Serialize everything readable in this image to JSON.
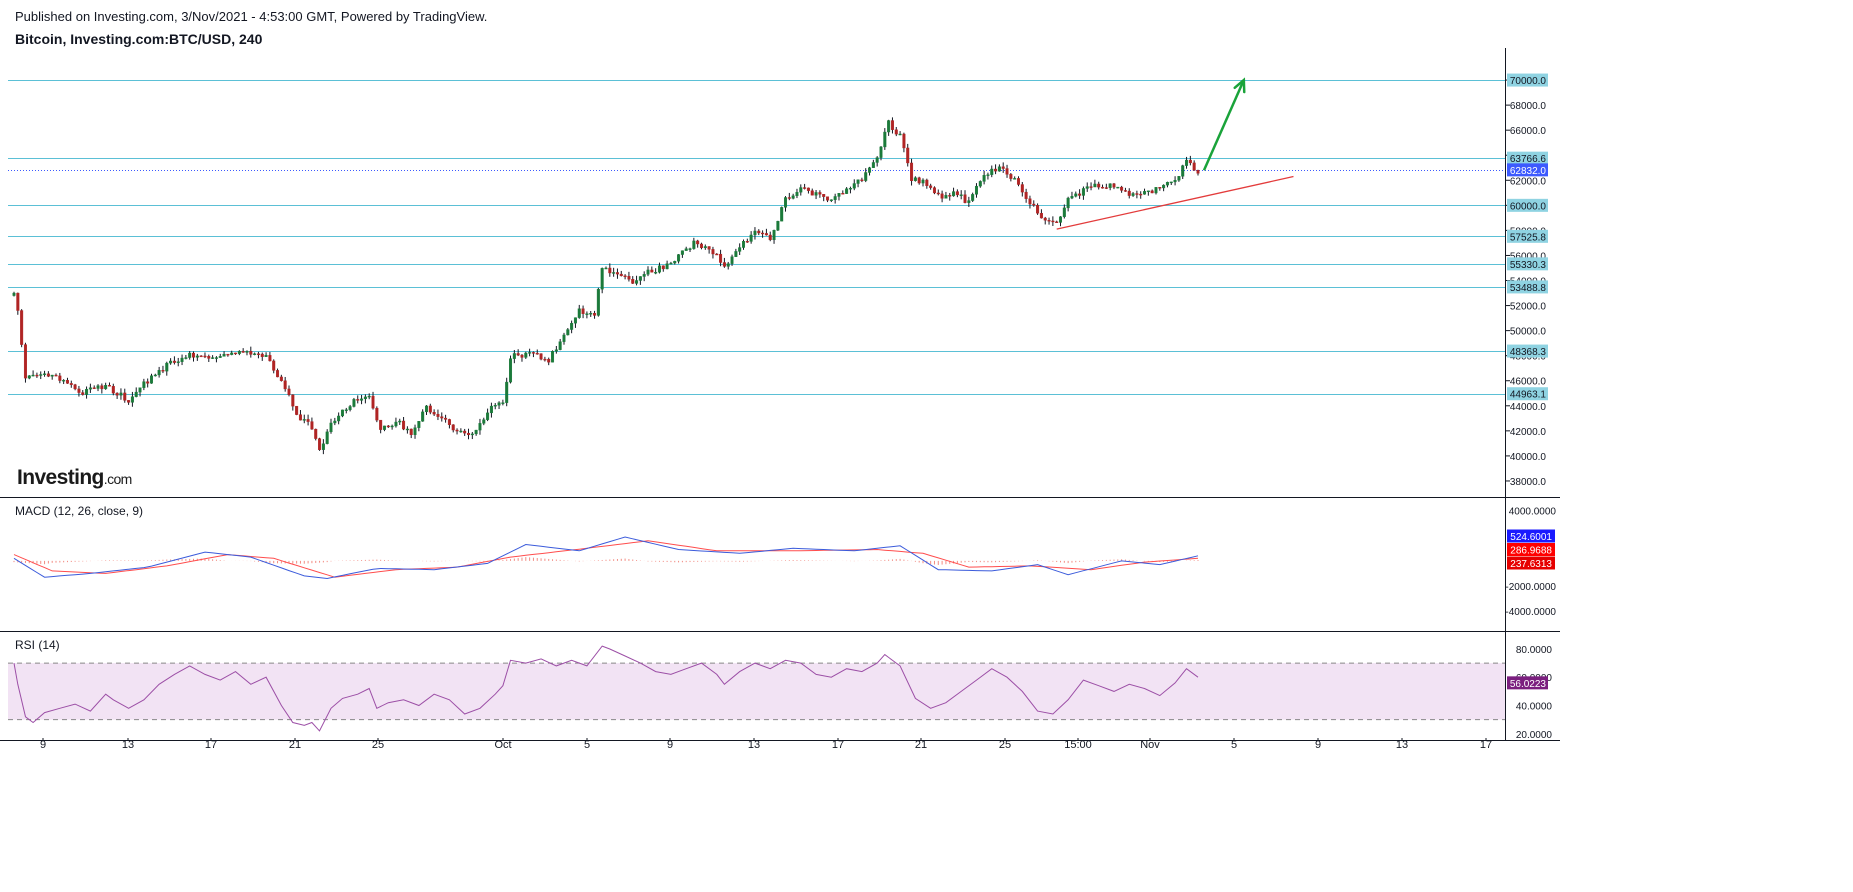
{
  "header": {
    "published": "Published on Investing.com, 3/Nov/2021 - 4:53:00 GMT, Powered by TradingView.",
    "symbol": "Bitcoin, Investing.com:BTC/USD, 240"
  },
  "watermark": {
    "brand": "Investing",
    "suffix": ".com"
  },
  "colors": {
    "up": "#26a69a",
    "up_body": "#1b7a3a",
    "down": "#b02424",
    "level_line": "#5bc0d6",
    "level_label_bg": "#8fd3e2",
    "current_price_line": "#3d5afe",
    "trendline": "#e33b3b",
    "arrow": "#1aa33a",
    "macd_line": "#3b5bdb",
    "signal_line": "#ff4d4d",
    "macd_hist": "#f28b82",
    "rsi_line": "#9c4fa6",
    "rsi_band": "#f2e3f4"
  },
  "panes": {
    "macd": {
      "label": "MACD (12, 26, close, 9)"
    },
    "rsi": {
      "label": "RSI (14)"
    }
  },
  "chart_data": [
    {
      "type": "candlestick",
      "title": "Bitcoin, Investing.com:BTC/USD, 240",
      "x_labels": [
        "9",
        "13",
        "17",
        "21",
        "25",
        "Oct",
        "5",
        "9",
        "13",
        "17",
        "21",
        "25",
        "15:00",
        "Nov",
        "5",
        "9",
        "13",
        "17"
      ],
      "ylim": [
        36800,
        72000
      ],
      "y_ticks": [
        38000,
        40000,
        42000,
        44000,
        46000,
        48000,
        50000,
        52000,
        54000,
        56000,
        58000,
        60000,
        62000,
        64000,
        66000,
        68000,
        70000
      ],
      "price_path": [
        [
          0,
          52800
        ],
        [
          1,
          51500
        ],
        [
          3,
          46200
        ],
        [
          8,
          46400
        ],
        [
          12,
          46100
        ],
        [
          18,
          45000
        ],
        [
          24,
          45600
        ],
        [
          30,
          44500
        ],
        [
          36,
          46300
        ],
        [
          42,
          47600
        ],
        [
          48,
          48200
        ],
        [
          54,
          47800
        ],
        [
          60,
          48500
        ],
        [
          66,
          47800
        ],
        [
          70,
          46100
        ],
        [
          74,
          43200
        ],
        [
          78,
          42300
        ],
        [
          80,
          40600
        ],
        [
          84,
          43000
        ],
        [
          90,
          44600
        ],
        [
          93,
          44900
        ],
        [
          96,
          42100
        ],
        [
          100,
          42800
        ],
        [
          104,
          41900
        ],
        [
          108,
          43800
        ],
        [
          112,
          43200
        ],
        [
          116,
          42000
        ],
        [
          120,
          41700
        ],
        [
          124,
          43600
        ],
        [
          128,
          44200
        ],
        [
          130,
          48000
        ],
        [
          136,
          48100
        ],
        [
          140,
          47700
        ],
        [
          144,
          49500
        ],
        [
          148,
          51600
        ],
        [
          152,
          51200
        ],
        [
          154,
          55200
        ],
        [
          158,
          54400
        ],
        [
          162,
          54000
        ],
        [
          166,
          54700
        ],
        [
          170,
          55100
        ],
        [
          174,
          55900
        ],
        [
          178,
          57000
        ],
        [
          182,
          56700
        ],
        [
          186,
          55200
        ],
        [
          190,
          56600
        ],
        [
          194,
          58000
        ],
        [
          198,
          57200
        ],
        [
          202,
          60500
        ],
        [
          206,
          61300
        ],
        [
          210,
          60800
        ],
        [
          214,
          60500
        ],
        [
          218,
          61400
        ],
        [
          222,
          62000
        ],
        [
          226,
          63900
        ],
        [
          229,
          66600
        ],
        [
          232,
          65500
        ],
        [
          235,
          62200
        ],
        [
          239,
          61700
        ],
        [
          242,
          60700
        ],
        [
          246,
          60900
        ],
        [
          250,
          60300
        ],
        [
          254,
          62300
        ],
        [
          258,
          63100
        ],
        [
          262,
          62100
        ],
        [
          266,
          60300
        ],
        [
          270,
          58600
        ],
        [
          273,
          58700
        ],
        [
          276,
          60500
        ],
        [
          280,
          61200
        ],
        [
          284,
          61700
        ],
        [
          288,
          61500
        ],
        [
          292,
          60900
        ],
        [
          296,
          61100
        ],
        [
          300,
          61300
        ],
        [
          304,
          62000
        ],
        [
          307,
          63500
        ],
        [
          310,
          62800
        ]
      ],
      "levels": [
        70000.0,
        63766.6,
        60000.0,
        57525.8,
        55330.3,
        53488.8,
        48368.3,
        44963.1
      ],
      "level_labels": [
        "70000.0",
        "63766.6",
        "60000.0",
        "57525.8",
        "55330.3",
        "53488.8",
        "48368.3",
        "44963.1"
      ],
      "current_price": 62832.0,
      "current_price_label": "62832.0",
      "trendline": {
        "from": [
          273,
          58100
        ],
        "to": [
          335,
          62300
        ]
      },
      "projection_arrow": {
        "from": [
          310,
          62800
        ],
        "to": [
          322,
          70000
        ]
      }
    },
    {
      "type": "line",
      "name": "MACD (12, 26, close, 9)",
      "ylim": [
        -5500,
        5000
      ],
      "y_ticks": [
        -4000,
        -2000,
        4000
      ],
      "y_tick_labels": [
        "-4000.0000",
        "-2000.0000",
        "4000.0000"
      ],
      "macd_path": [
        [
          0,
          200
        ],
        [
          8,
          -1300
        ],
        [
          20,
          -1000
        ],
        [
          35,
          -500
        ],
        [
          50,
          700
        ],
        [
          62,
          300
        ],
        [
          76,
          -1200
        ],
        [
          82,
          -1400
        ],
        [
          95,
          -600
        ],
        [
          110,
          -700
        ],
        [
          124,
          -200
        ],
        [
          134,
          1300
        ],
        [
          148,
          800
        ],
        [
          160,
          1900
        ],
        [
          174,
          900
        ],
        [
          190,
          600
        ],
        [
          204,
          1000
        ],
        [
          220,
          800
        ],
        [
          232,
          1200
        ],
        [
          242,
          -700
        ],
        [
          256,
          -800
        ],
        [
          268,
          -300
        ],
        [
          276,
          -1100
        ],
        [
          290,
          0
        ],
        [
          300,
          -300
        ],
        [
          310,
          400
        ]
      ],
      "signal_path": [
        [
          0,
          500
        ],
        [
          10,
          -800
        ],
        [
          24,
          -1000
        ],
        [
          40,
          -400
        ],
        [
          56,
          500
        ],
        [
          68,
          200
        ],
        [
          84,
          -1300
        ],
        [
          100,
          -700
        ],
        [
          116,
          -500
        ],
        [
          130,
          300
        ],
        [
          150,
          1000
        ],
        [
          166,
          1600
        ],
        [
          184,
          800
        ],
        [
          204,
          800
        ],
        [
          226,
          900
        ],
        [
          238,
          600
        ],
        [
          250,
          -500
        ],
        [
          266,
          -400
        ],
        [
          282,
          -700
        ],
        [
          296,
          -100
        ],
        [
          310,
          200
        ]
      ],
      "values": {
        "macd": 524.6001,
        "signal": 286.9688,
        "histogram": 237.6313
      },
      "value_labels": [
        "524.6001",
        "286.9688",
        "237.6313"
      ]
    },
    {
      "type": "line",
      "name": "RSI (14)",
      "ylim": [
        17,
        92
      ],
      "y_ticks": [
        20,
        40,
        60,
        80
      ],
      "y_tick_labels": [
        "20.0000",
        "40.0000",
        "60.0000",
        "80.0000"
      ],
      "band": [
        30,
        70
      ],
      "rsi_path": [
        [
          0,
          70
        ],
        [
          1,
          55
        ],
        [
          3,
          32
        ],
        [
          5,
          28
        ],
        [
          8,
          35
        ],
        [
          12,
          38
        ],
        [
          16,
          41
        ],
        [
          20,
          36
        ],
        [
          24,
          48
        ],
        [
          26,
          44
        ],
        [
          30,
          38
        ],
        [
          34,
          44
        ],
        [
          38,
          55
        ],
        [
          42,
          62
        ],
        [
          46,
          68
        ],
        [
          50,
          62
        ],
        [
          54,
          58
        ],
        [
          58,
          64
        ],
        [
          62,
          55
        ],
        [
          66,
          60
        ],
        [
          70,
          40
        ],
        [
          73,
          28
        ],
        [
          76,
          26
        ],
        [
          78,
          28
        ],
        [
          80,
          22
        ],
        [
          83,
          38
        ],
        [
          86,
          45
        ],
        [
          90,
          48
        ],
        [
          93,
          52
        ],
        [
          95,
          38
        ],
        [
          98,
          42
        ],
        [
          102,
          44
        ],
        [
          106,
          40
        ],
        [
          110,
          48
        ],
        [
          114,
          44
        ],
        [
          118,
          34
        ],
        [
          122,
          38
        ],
        [
          126,
          48
        ],
        [
          128,
          54
        ],
        [
          130,
          72
        ],
        [
          134,
          70
        ],
        [
          138,
          73
        ],
        [
          142,
          68
        ],
        [
          146,
          72
        ],
        [
          150,
          68
        ],
        [
          154,
          82
        ],
        [
          156,
          80
        ],
        [
          160,
          75
        ],
        [
          164,
          70
        ],
        [
          168,
          64
        ],
        [
          172,
          62
        ],
        [
          176,
          66
        ],
        [
          180,
          70
        ],
        [
          184,
          62
        ],
        [
          186,
          55
        ],
        [
          190,
          64
        ],
        [
          194,
          70
        ],
        [
          198,
          66
        ],
        [
          202,
          72
        ],
        [
          206,
          70
        ],
        [
          210,
          62
        ],
        [
          214,
          60
        ],
        [
          218,
          66
        ],
        [
          222,
          64
        ],
        [
          226,
          70
        ],
        [
          228,
          76
        ],
        [
          232,
          68
        ],
        [
          236,
          45
        ],
        [
          240,
          38
        ],
        [
          244,
          42
        ],
        [
          248,
          50
        ],
        [
          252,
          58
        ],
        [
          256,
          66
        ],
        [
          260,
          60
        ],
        [
          264,
          50
        ],
        [
          268,
          36
        ],
        [
          272,
          34
        ],
        [
          276,
          44
        ],
        [
          280,
          58
        ],
        [
          284,
          54
        ],
        [
          288,
          50
        ],
        [
          292,
          55
        ],
        [
          296,
          52
        ],
        [
          300,
          47
        ],
        [
          304,
          56
        ],
        [
          307,
          66
        ],
        [
          310,
          60
        ]
      ],
      "value": 56.0223,
      "value_label": "56.0223"
    }
  ]
}
